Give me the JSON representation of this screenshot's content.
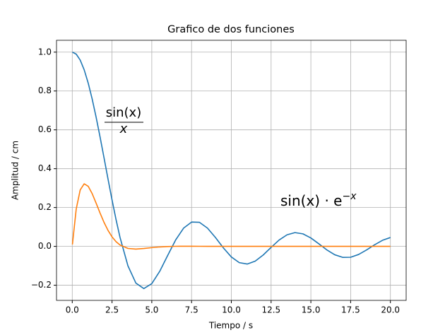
{
  "chart_data": {
    "type": "line",
    "title": "Grafico de dos funciones",
    "xlabel": "Tiempo / s",
    "ylabel": "Amplitud / cm",
    "x": [
      0.01,
      0.25,
      0.5,
      0.75,
      1,
      1.25,
      1.5,
      1.75,
      2,
      2.25,
      2.5,
      2.75,
      3,
      3.5,
      4,
      4.5,
      5,
      5.5,
      6,
      6.5,
      7,
      7.5,
      8,
      8.5,
      9,
      9.5,
      10,
      10.5,
      11,
      11.5,
      12,
      12.5,
      13,
      13.5,
      14,
      14.5,
      15,
      15.5,
      16,
      16.5,
      17,
      17.5,
      18,
      18.5,
      19,
      19.5,
      20
    ],
    "series": [
      {
        "color": "#1f77b4",
        "values": [
          1.0,
          0.9896,
          0.9589,
          0.9089,
          0.8415,
          0.7592,
          0.665,
          0.5623,
          0.4546,
          0.3458,
          0.2394,
          0.1388,
          0.047,
          -0.1002,
          -0.1892,
          -0.2172,
          -0.1918,
          -0.1283,
          -0.0466,
          0.0331,
          0.0939,
          0.1251,
          0.1237,
          0.0939,
          0.0458,
          -0.0079,
          -0.0544,
          -0.0838,
          -0.0909,
          -0.0761,
          -0.0447,
          -0.0053,
          0.0323,
          0.0595,
          0.0708,
          0.0645,
          0.0434,
          0.0133,
          -0.018,
          -0.0431,
          -0.0566,
          -0.056,
          -0.0417,
          -0.0185,
          0.0079,
          0.0311,
          0.0456
        ]
      },
      {
        "color": "#ff7f0e",
        "values": [
          0.0099,
          0.1927,
          0.2908,
          0.322,
          0.3096,
          0.2719,
          0.2226,
          0.171,
          0.1231,
          0.082,
          0.0491,
          0.0244,
          0.007,
          -0.0106,
          -0.0139,
          -0.0109,
          -0.0065,
          -0.0029,
          -0.0007,
          0.0003,
          0.0006,
          0.0005,
          0.0003,
          0.0002,
          0.0001,
          0,
          0,
          0,
          0,
          0,
          0,
          0,
          0,
          0,
          0,
          0,
          0,
          0,
          0,
          0,
          0,
          0,
          0,
          0,
          0,
          0,
          0
        ]
      }
    ],
    "annotations": [
      {
        "numerator": "sin(x)",
        "denominator": "x"
      },
      {
        "text": "sin(x) · e",
        "superscript": "−x"
      }
    ],
    "xlim": [
      -0.99,
      20.99
    ],
    "ylim": [
      -0.278,
      1.061
    ],
    "xticks": [
      {
        "value": 0,
        "label": "0.0"
      },
      {
        "value": 2.5,
        "label": "2.5"
      },
      {
        "value": 5,
        "label": "5.0"
      },
      {
        "value": 7.5,
        "label": "7.5"
      },
      {
        "value": 10,
        "label": "10.0"
      },
      {
        "value": 12.5,
        "label": "12.5"
      },
      {
        "value": 15,
        "label": "15.0"
      },
      {
        "value": 17.5,
        "label": "17.5"
      },
      {
        "value": 20,
        "label": "20.0"
      }
    ],
    "yticks": [
      {
        "value": -0.2,
        "label": "−0.2"
      },
      {
        "value": 0,
        "label": "0.0"
      },
      {
        "value": 0.2,
        "label": "0.2"
      },
      {
        "value": 0.4,
        "label": "0.4"
      },
      {
        "value": 0.6,
        "label": "0.6"
      },
      {
        "value": 0.8,
        "label": "0.8"
      },
      {
        "value": 1.0,
        "label": "1.0"
      }
    ],
    "grid": true
  }
}
